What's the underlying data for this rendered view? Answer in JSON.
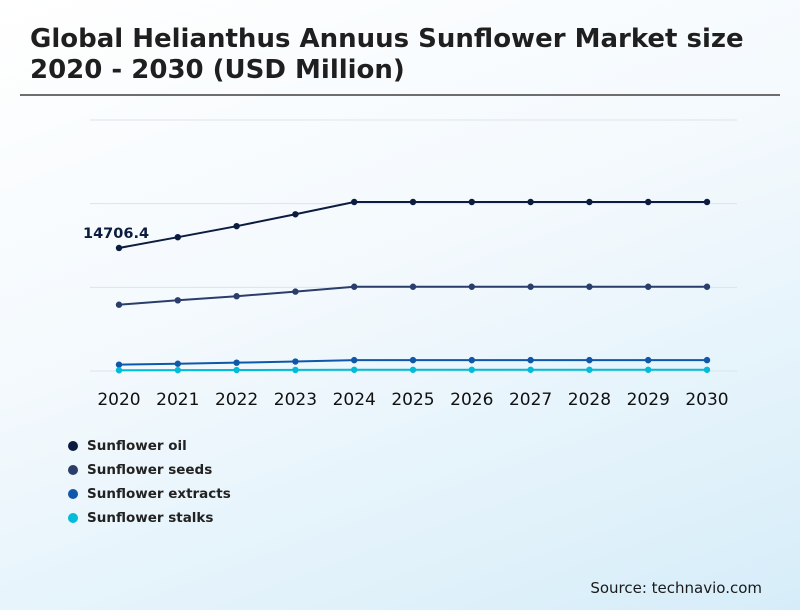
{
  "page": {
    "title": "Global Helianthus Annuus Sunflower Market size 2020 - 2030 (USD Million)",
    "source": "Source: technavio.com"
  },
  "chart_data": {
    "type": "line",
    "title": "Global Helianthus Annuus Sunflower Market size 2020 - 2030 (USD Million)",
    "xlabel": "",
    "ylabel": "",
    "categories": [
      "2020",
      "2021",
      "2022",
      "2023",
      "2024",
      "2025",
      "2026",
      "2027",
      "2028",
      "2029",
      "2030"
    ],
    "ylim": [
      0,
      30000
    ],
    "grid": true,
    "legend_position": "bottom-left",
    "annotation": {
      "series": "Sunflower oil",
      "category": "2020",
      "text": "14706.4"
    },
    "series": [
      {
        "name": "Sunflower oil",
        "color": "#0b1c3f",
        "values": [
          14706.4,
          15995,
          17310,
          18730,
          20200,
          20200,
          20200,
          20200,
          20200,
          20200,
          20200
        ]
      },
      {
        "name": "Sunflower seeds",
        "color": "#2a3d6b",
        "values": [
          7920,
          8450,
          8940,
          9490,
          10070,
          10070,
          10070,
          10070,
          10070,
          10070,
          10070
        ]
      },
      {
        "name": "Sunflower extracts",
        "color": "#0f57a8",
        "values": [
          760,
          870,
          995,
          1130,
          1300,
          1300,
          1300,
          1300,
          1300,
          1300,
          1300
        ]
      },
      {
        "name": "Sunflower stalks",
        "color": "#00bcd8",
        "values": [
          88,
          101,
          114,
          128,
          145,
          145,
          145,
          145,
          145,
          145,
          145
        ]
      }
    ]
  }
}
